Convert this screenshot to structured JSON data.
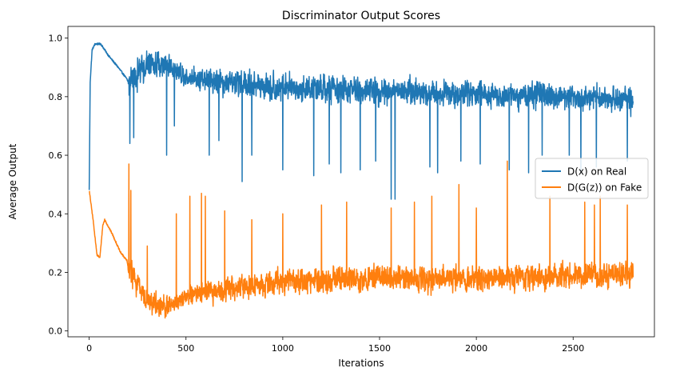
{
  "chart_data": {
    "type": "line",
    "title": "Discriminator Output Scores",
    "xlabel": "Iterations",
    "ylabel": "Average Output",
    "xlim": [
      -110,
      2920
    ],
    "ylim": [
      -0.02,
      1.04
    ],
    "x_ticks": [
      0,
      500,
      1000,
      1500,
      2000,
      2500
    ],
    "y_ticks": [
      0.0,
      0.2,
      0.4,
      0.6,
      0.8,
      1.0
    ],
    "x_tick_labels": [
      "0",
      "500",
      "1000",
      "1500",
      "2000",
      "2500"
    ],
    "y_tick_labels": [
      "0.0",
      "0.2",
      "0.4",
      "0.6",
      "0.8",
      "1.0"
    ],
    "grid": false,
    "legend_position": "center-right",
    "x_max": 2810,
    "series": [
      {
        "name": "D(x) on Real",
        "color": "#1f77b4",
        "trend": [
          [
            0,
            0.48
          ],
          [
            5,
            0.85
          ],
          [
            15,
            0.96
          ],
          [
            30,
            0.98
          ],
          [
            60,
            0.98
          ],
          [
            100,
            0.94
          ],
          [
            150,
            0.9
          ],
          [
            195,
            0.86
          ],
          [
            200,
            0.85
          ],
          [
            300,
            0.91
          ],
          [
            400,
            0.91
          ],
          [
            500,
            0.87
          ],
          [
            700,
            0.85
          ],
          [
            1000,
            0.83
          ],
          [
            1500,
            0.82
          ],
          [
            2000,
            0.81
          ],
          [
            2500,
            0.8
          ],
          [
            2810,
            0.79
          ]
        ],
        "noise_band": [
          [
            0,
            0.0
          ],
          [
            195,
            0.0
          ],
          [
            205,
            0.1
          ],
          [
            500,
            0.07
          ],
          [
            800,
            0.09
          ],
          [
            2810,
            0.08
          ]
        ],
        "spikes": [
          [
            210,
            0.64
          ],
          [
            230,
            0.66
          ],
          [
            400,
            0.6
          ],
          [
            440,
            0.7
          ],
          [
            620,
            0.6
          ],
          [
            670,
            0.65
          ],
          [
            790,
            0.51
          ],
          [
            840,
            0.6
          ],
          [
            1000,
            0.55
          ],
          [
            1160,
            0.53
          ],
          [
            1240,
            0.57
          ],
          [
            1300,
            0.54
          ],
          [
            1400,
            0.55
          ],
          [
            1480,
            0.58
          ],
          [
            1560,
            0.45
          ],
          [
            1580,
            0.45
          ],
          [
            1760,
            0.56
          ],
          [
            1800,
            0.54
          ],
          [
            1920,
            0.58
          ],
          [
            2020,
            0.57
          ],
          [
            2170,
            0.55
          ],
          [
            2270,
            0.54
          ],
          [
            2340,
            0.6
          ],
          [
            2480,
            0.6
          ],
          [
            2540,
            0.54
          ],
          [
            2620,
            0.56
          ],
          [
            2780,
            0.58
          ]
        ]
      },
      {
        "name": "D(G(z)) on Fake",
        "color": "#ff7f0e",
        "trend": [
          [
            0,
            0.48
          ],
          [
            20,
            0.38
          ],
          [
            40,
            0.26
          ],
          [
            55,
            0.25
          ],
          [
            70,
            0.36
          ],
          [
            80,
            0.38
          ],
          [
            120,
            0.33
          ],
          [
            160,
            0.27
          ],
          [
            195,
            0.24
          ],
          [
            200,
            0.22
          ],
          [
            250,
            0.16
          ],
          [
            300,
            0.1
          ],
          [
            400,
            0.08
          ],
          [
            500,
            0.12
          ],
          [
            700,
            0.14
          ],
          [
            1000,
            0.17
          ],
          [
            1500,
            0.18
          ],
          [
            2000,
            0.18
          ],
          [
            2500,
            0.19
          ],
          [
            2810,
            0.19
          ]
        ],
        "noise_band": [
          [
            0,
            0.0
          ],
          [
            195,
            0.0
          ],
          [
            205,
            0.09
          ],
          [
            500,
            0.06
          ],
          [
            800,
            0.08
          ],
          [
            2810,
            0.08
          ]
        ],
        "spikes": [
          [
            205,
            0.57
          ],
          [
            215,
            0.48
          ],
          [
            300,
            0.29
          ],
          [
            450,
            0.4
          ],
          [
            520,
            0.46
          ],
          [
            580,
            0.47
          ],
          [
            600,
            0.46
          ],
          [
            700,
            0.41
          ],
          [
            840,
            0.38
          ],
          [
            1000,
            0.4
          ],
          [
            1200,
            0.43
          ],
          [
            1330,
            0.44
          ],
          [
            1560,
            0.42
          ],
          [
            1680,
            0.44
          ],
          [
            1770,
            0.46
          ],
          [
            1910,
            0.5
          ],
          [
            2000,
            0.42
          ],
          [
            2160,
            0.58
          ],
          [
            2380,
            0.46
          ],
          [
            2560,
            0.44
          ],
          [
            2610,
            0.43
          ],
          [
            2640,
            0.46
          ],
          [
            2780,
            0.43
          ]
        ]
      }
    ]
  }
}
